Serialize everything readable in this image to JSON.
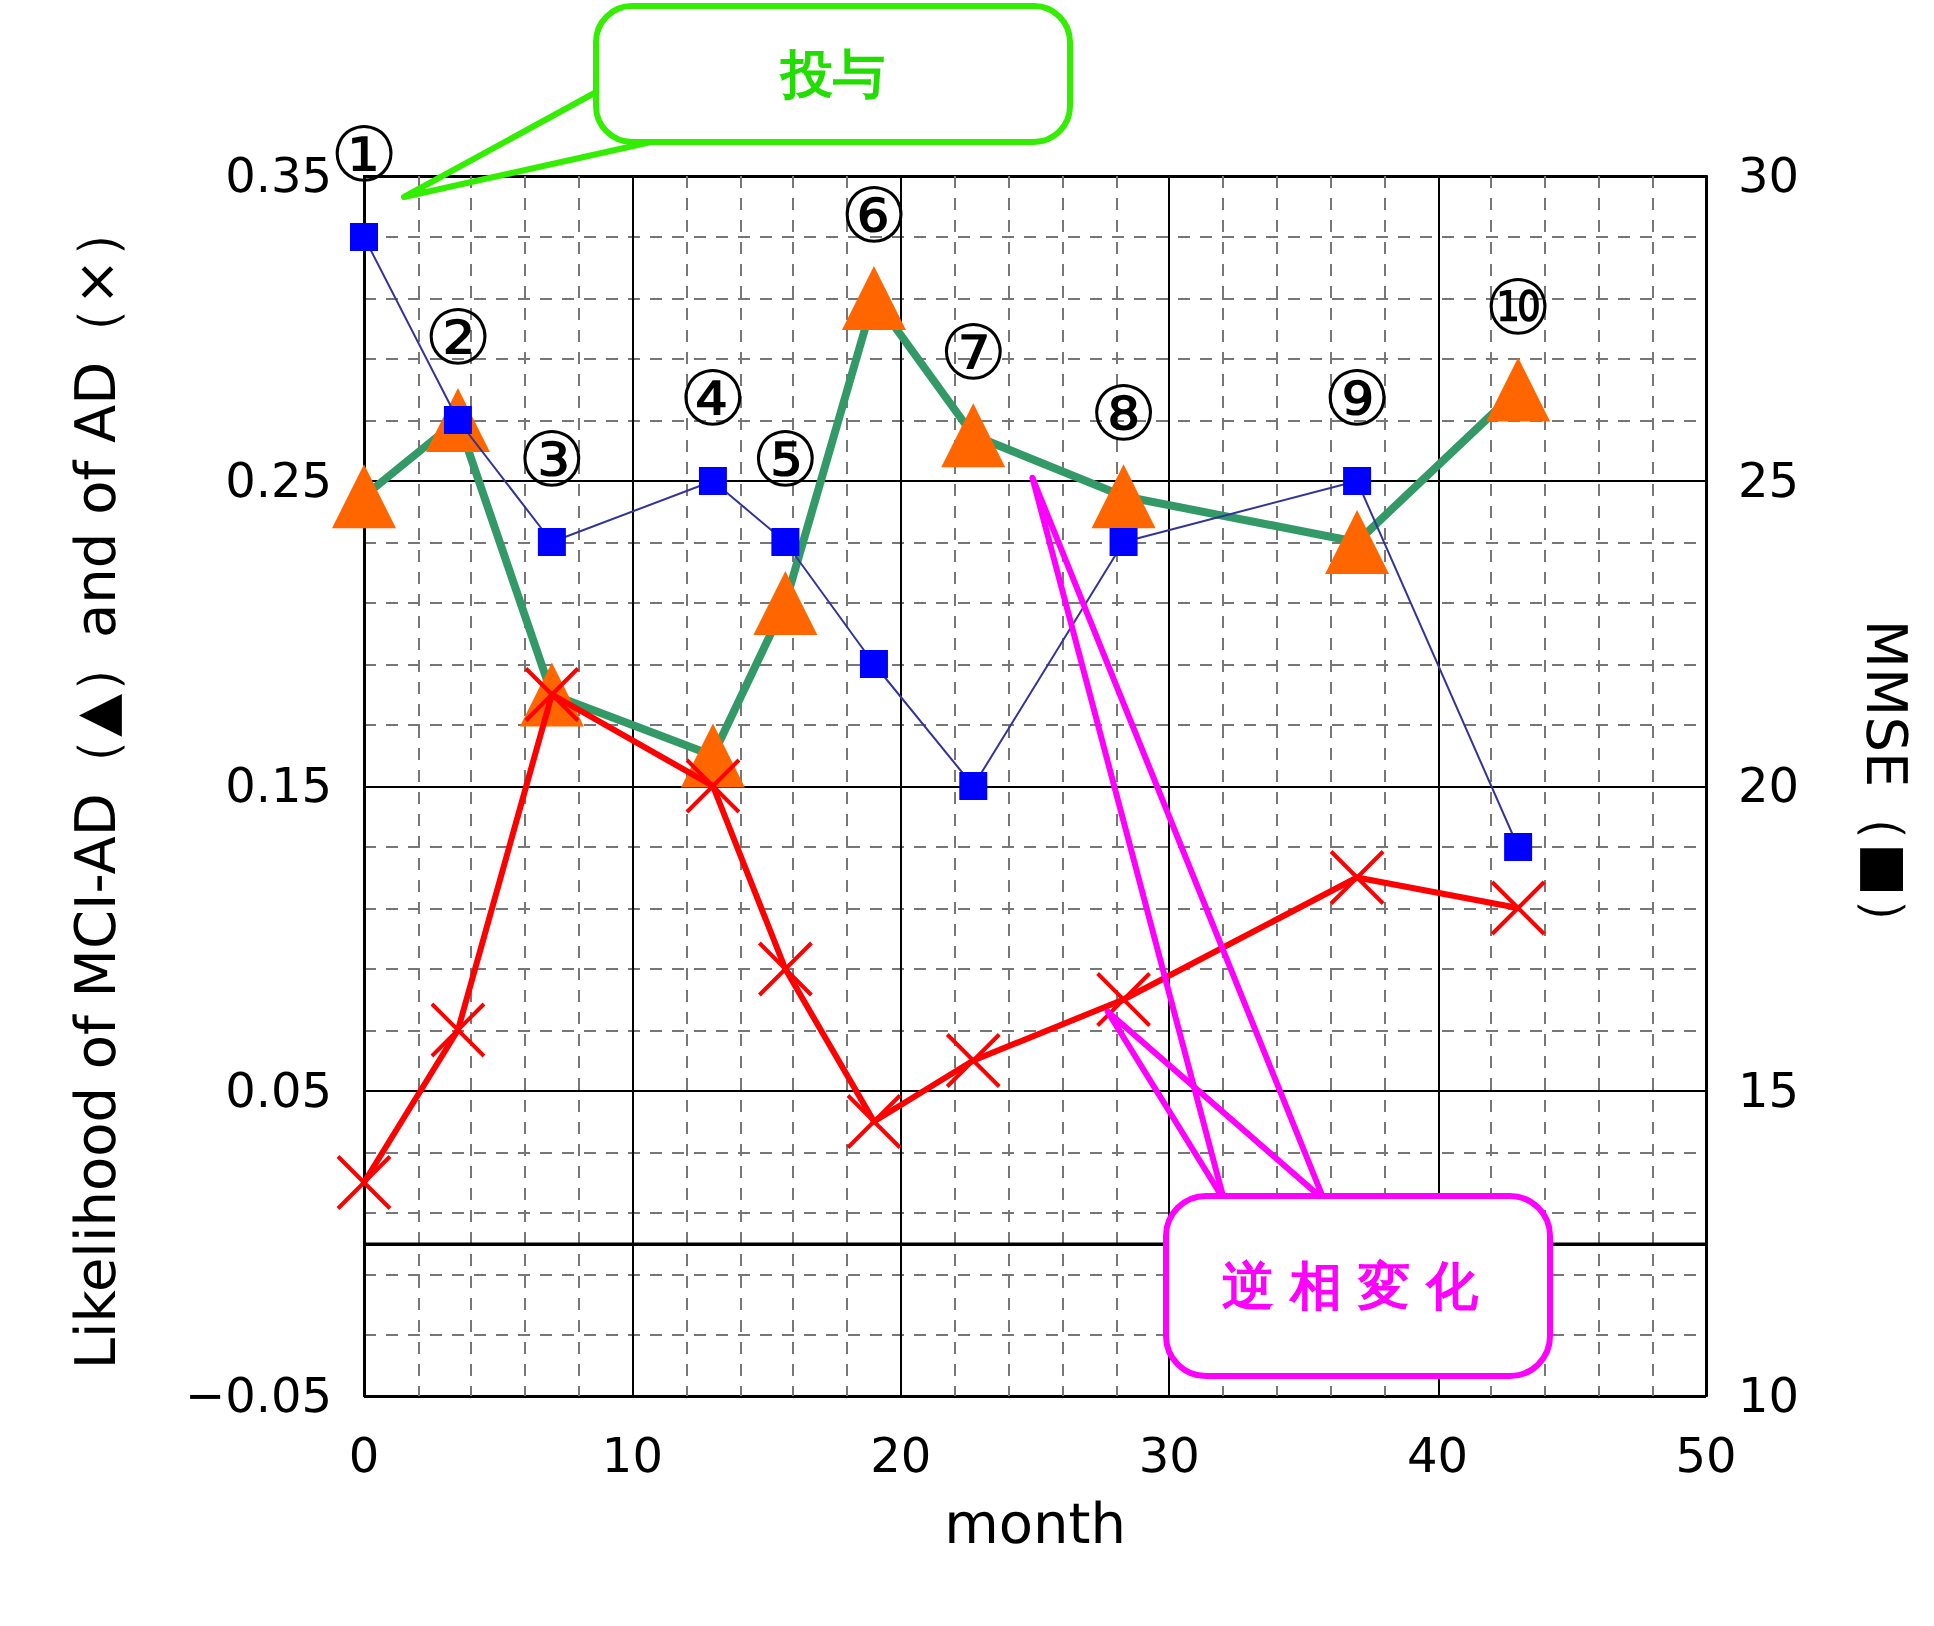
{
  "chart_data": {
    "type": "line",
    "xlabel": "month",
    "ylabel": "Likelihood of MCI-AD（▲）and of AD（×）",
    "y2label": "MMSE（■）",
    "x": [
      0,
      3.5,
      7,
      13,
      15.7,
      19,
      22.7,
      28.3,
      37,
      43
    ],
    "series": [
      {
        "color": "#ff6600",
        "marker": "triangle",
        "values": [
          0.245,
          0.27,
          0.18,
          0.16,
          0.21,
          0.31,
          0.265,
          0.245,
          0.23,
          0.28
        ]
      },
      {
        "color": "#ff0000",
        "marker": "cross",
        "values": [
          0.02,
          0.07,
          0.18,
          0.15,
          0.09,
          0.04,
          0.06,
          0.08,
          0.12,
          0.11
        ]
      },
      {
        "color": "#0000ff",
        "marker": "square",
        "axis": "y2",
        "values": [
          29,
          26,
          24,
          25,
          24,
          22,
          20,
          24,
          25,
          19
        ]
      }
    ],
    "xlim": [
      0,
      50
    ],
    "xticks": [
      0,
      10,
      20,
      30,
      40,
      50
    ],
    "ylim": [
      -0.05,
      0.35
    ],
    "yticks": [
      {
        "value": -0.05,
        "label": "−0.05"
      },
      0.05,
      0.15,
      0.25,
      0.35
    ],
    "y2lim": [
      10,
      30
    ],
    "y2ticks": [
      10,
      15,
      20,
      25,
      30
    ],
    "ref_lines": [
      {
        "axis": "y",
        "value": 0,
        "color": "#000000"
      }
    ],
    "annotations": [
      {
        "text": "①",
        "x": 0,
        "y": 0.33
      },
      {
        "text": "②",
        "x": 3.5,
        "y": 0.27
      },
      {
        "text": "③",
        "x": 7,
        "y": 0.23
      },
      {
        "text": "④",
        "x": 13,
        "y": 0.25
      },
      {
        "text": "⑤",
        "x": 15.7,
        "y": 0.23
      },
      {
        "text": "⑥",
        "x": 19,
        "y": 0.31
      },
      {
        "text": "⑦",
        "x": 22.7,
        "y": 0.265
      },
      {
        "text": "⑧",
        "x": 28.3,
        "y": 0.245
      },
      {
        "text": "⑨",
        "x": 37,
        "y": 0.25
      },
      {
        "text": "⑩",
        "x": 43,
        "y": 0.28
      },
      "投与",
      "逆相変化"
    ],
    "grid": true,
    "line_style": "solid"
  }
}
